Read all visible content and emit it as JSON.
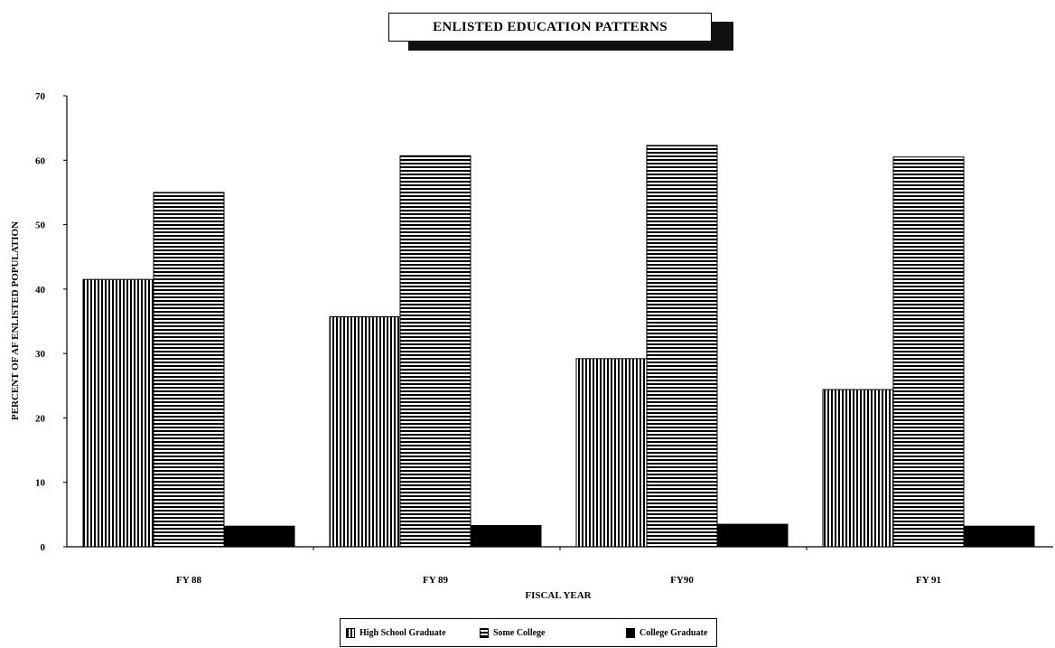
{
  "chart_data": {
    "type": "bar",
    "title": "ENLISTED EDUCATION PATTERNS",
    "xlabel": "FISCAL YEAR",
    "ylabel": "PERCENT OF AF ENLISTED POPULATION",
    "categories": [
      "FY 88",
      "FY 89",
      "FY90",
      "FY 91"
    ],
    "series": [
      {
        "name": "High School Graduate",
        "pattern": "vertical-stripes",
        "values": [
          41.5,
          35.7,
          29.2,
          24.4
        ]
      },
      {
        "name": "Some College",
        "pattern": "horizontal-stripes",
        "values": [
          55.0,
          60.7,
          62.3,
          60.5
        ]
      },
      {
        "name": "College Graduate",
        "pattern": "solid",
        "values": [
          3.2,
          3.3,
          3.5,
          3.2
        ]
      }
    ],
    "ylim": [
      0,
      70
    ],
    "yticks": [
      0,
      10,
      20,
      30,
      40,
      50,
      60,
      70
    ],
    "grid": false,
    "legend_position": "bottom"
  },
  "colors": {
    "bar_fill": "#000000",
    "background": "#ffffff"
  }
}
